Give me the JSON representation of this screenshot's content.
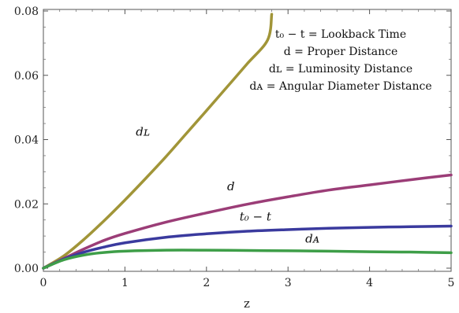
{
  "chart_data": {
    "type": "line",
    "xlabel": "z",
    "ylabel": "",
    "xlim": [
      0,
      5
    ],
    "ylim": [
      0,
      0.08
    ],
    "x_ticks": [
      "0",
      "1",
      "2",
      "3",
      "4",
      "5"
    ],
    "y_ticks": [
      "0.00",
      "0.02",
      "0.04",
      "0.06",
      "0.08"
    ],
    "grid": false,
    "legend_position": "top-right",
    "legend_lines": [
      "t₀ − t = Lookback Time",
      "d = Proper Distance",
      "dʟ = Luminosity Distance",
      "dᴀ = Angular Diameter Distance"
    ],
    "series": [
      {
        "name": "dʟ",
        "label": "dʟ",
        "color": "#A19538",
        "x": [
          0,
          0.25,
          0.5,
          0.75,
          1.0,
          1.25,
          1.5,
          1.75,
          2.0,
          2.25,
          2.5,
          2.75,
          2.8
        ],
        "y": [
          0,
          0.0038,
          0.009,
          0.0149,
          0.0212,
          0.0278,
          0.0346,
          0.0418,
          0.049,
          0.0563,
          0.0636,
          0.071,
          0.079
        ]
      },
      {
        "name": "d",
        "label": "d",
        "color": "#9B3D77",
        "x": [
          0,
          0.25,
          0.5,
          0.75,
          1.0,
          1.5,
          2.0,
          2.5,
          3.0,
          3.5,
          4.0,
          4.5,
          5.0
        ],
        "y": [
          0,
          0.003,
          0.006,
          0.0087,
          0.0108,
          0.0143,
          0.0172,
          0.0199,
          0.0222,
          0.0243,
          0.0259,
          0.0275,
          0.029
        ]
      },
      {
        "name": "t₀ − t",
        "label": "t₀ − t",
        "color": "#3A3A9E",
        "x": [
          0,
          0.25,
          0.5,
          0.75,
          1.0,
          1.5,
          2.0,
          2.5,
          3.0,
          3.5,
          4.0,
          4.5,
          5.0
        ],
        "y": [
          0,
          0.0028,
          0.005,
          0.0066,
          0.0079,
          0.0096,
          0.0107,
          0.0115,
          0.012,
          0.0124,
          0.0127,
          0.0129,
          0.0131
        ]
      },
      {
        "name": "dᴀ",
        "label": "dᴀ",
        "color": "#3E9E48",
        "x": [
          0,
          0.25,
          0.5,
          0.75,
          1.0,
          1.5,
          2.0,
          2.5,
          3.0,
          3.5,
          4.0,
          4.5,
          5.0
        ],
        "y": [
          0,
          0.0026,
          0.0041,
          0.0049,
          0.0053,
          0.0056,
          0.0056,
          0.0055,
          0.0054,
          0.0053,
          0.0051,
          0.005,
          0.0048
        ]
      }
    ],
    "curve_labels": [
      {
        "text": "dʟ",
        "x": 1.22,
        "y": 0.0412
      },
      {
        "text": "d",
        "x": 2.3,
        "y": 0.0242
      },
      {
        "text": "t₀ − t",
        "x": 2.6,
        "y": 0.0148
      },
      {
        "text": "dᴀ",
        "x": 3.3,
        "y": 0.008
      }
    ]
  }
}
